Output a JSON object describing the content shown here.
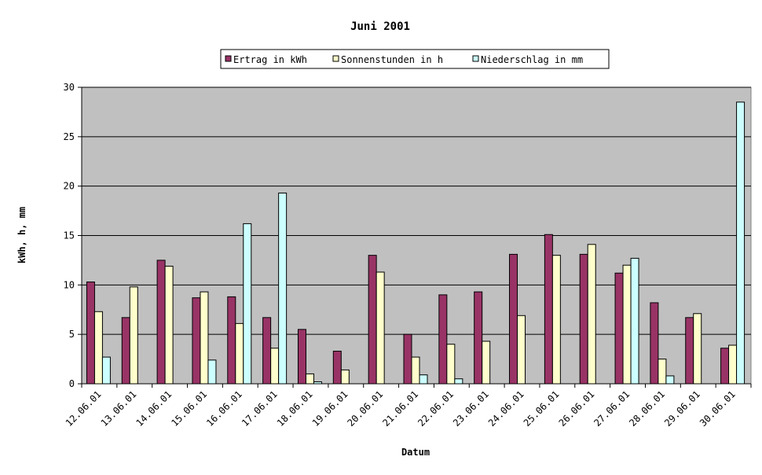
{
  "chart_data": {
    "type": "bar",
    "title": "Juni 2001",
    "xlabel": "Datum",
    "ylabel": "kWh, h, mm",
    "ylim": [
      0,
      30
    ],
    "yticks": [
      0,
      5,
      10,
      15,
      20,
      25,
      30
    ],
    "grid": true,
    "legend_position": "top",
    "plot_background": "#c0c0c0",
    "categories": [
      "12.06.01",
      "13.06.01",
      "14.06.01",
      "15.06.01",
      "16.06.01",
      "17.06.01",
      "18.06.01",
      "19.06.01",
      "20.06.01",
      "21.06.01",
      "22.06.01",
      "23.06.01",
      "24.06.01",
      "25.06.01",
      "26.06.01",
      "27.06.01",
      "28.06.01",
      "29.06.01",
      "30.06.01"
    ],
    "series": [
      {
        "name": "Ertrag in kWh",
        "color": "#993366",
        "values": [
          10.3,
          6.7,
          12.5,
          8.7,
          8.8,
          6.7,
          5.5,
          3.3,
          13.0,
          5.0,
          9.0,
          9.3,
          13.1,
          15.1,
          13.1,
          11.2,
          8.2,
          6.7,
          3.6
        ]
      },
      {
        "name": "Sonnenstunden in h",
        "color": "#ffffcc",
        "values": [
          7.3,
          9.8,
          11.9,
          9.3,
          6.1,
          3.6,
          1.0,
          1.4,
          11.3,
          2.7,
          4.0,
          4.3,
          6.9,
          13.0,
          14.1,
          12.0,
          2.5,
          7.1,
          3.9
        ]
      },
      {
        "name": "Niederschlag in mm",
        "color": "#ccffff",
        "values": [
          2.7,
          0,
          0,
          2.4,
          16.2,
          19.3,
          0.2,
          0,
          0,
          0.9,
          0.5,
          0,
          0,
          0,
          0,
          12.7,
          0.8,
          0,
          28.5
        ]
      }
    ]
  }
}
